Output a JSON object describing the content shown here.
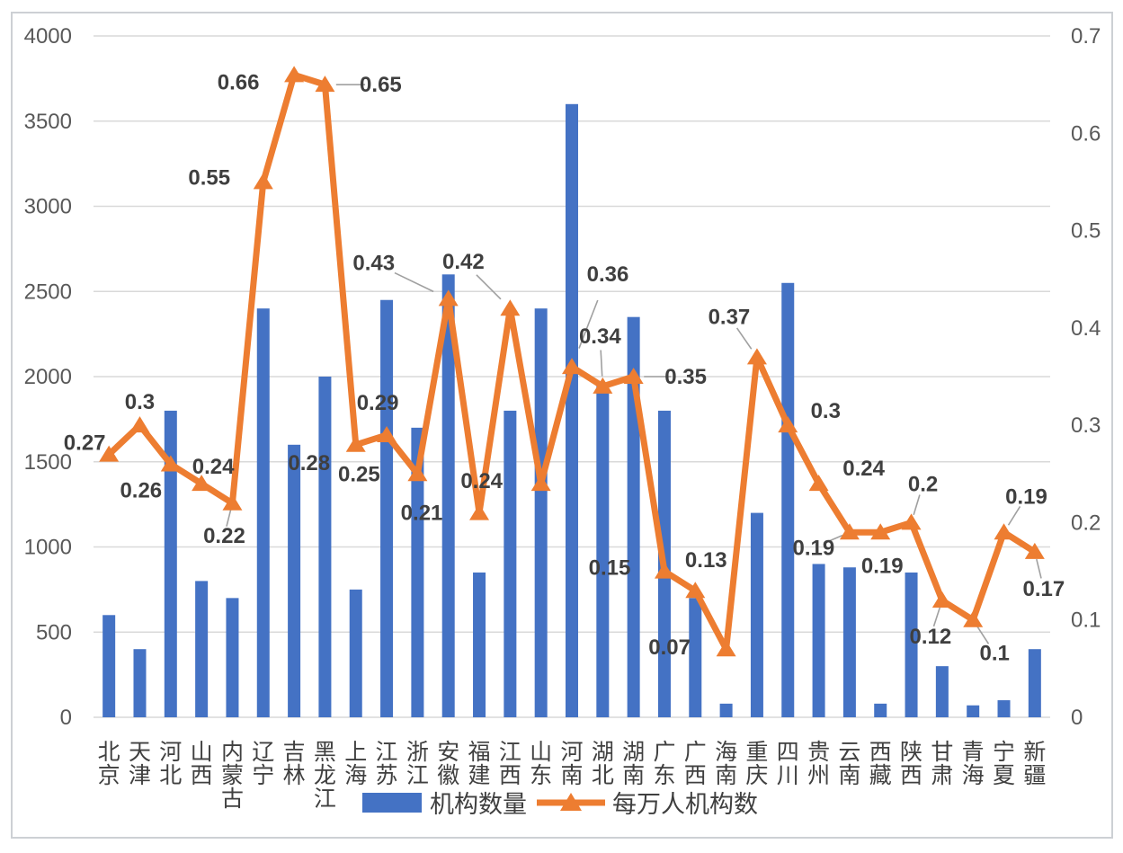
{
  "chart_data": {
    "type": "combo-bar-line",
    "categories": [
      "北京",
      "天津",
      "河北",
      "山西",
      "内蒙古",
      "辽宁",
      "吉林",
      "黑龙江",
      "上海",
      "江苏",
      "浙江",
      "安徽",
      "福建",
      "江西",
      "山东",
      "河南",
      "湖北",
      "湖南",
      "广东",
      "广西",
      "海南",
      "重庆",
      "四川",
      "贵州",
      "云南",
      "西藏",
      "陕西",
      "甘肃",
      "青海",
      "宁夏",
      "新疆"
    ],
    "series": [
      {
        "name": "机构数量",
        "type": "bar",
        "axis": "left",
        "color": "#4472C4",
        "values": [
          600,
          400,
          1800,
          800,
          700,
          2400,
          1600,
          2000,
          750,
          2450,
          1700,
          2600,
          850,
          1800,
          2400,
          3600,
          1950,
          2350,
          1800,
          700,
          80,
          1200,
          2550,
          900,
          880,
          80,
          850,
          300,
          70,
          100,
          400
        ]
      },
      {
        "name": "每万人机构数",
        "type": "line",
        "axis": "right",
        "color": "#ED7D31",
        "marker": "triangle",
        "values": [
          0.27,
          0.3,
          0.26,
          0.24,
          0.22,
          0.55,
          0.66,
          0.65,
          0.28,
          0.29,
          0.25,
          0.43,
          0.21,
          0.42,
          0.24,
          0.36,
          0.34,
          0.35,
          0.15,
          0.13,
          0.07,
          0.37,
          0.3,
          0.24,
          0.19,
          0.19,
          0.2,
          0.12,
          0.1,
          0.19,
          0.17
        ]
      }
    ],
    "data_labels": [
      "0.27",
      "0.3",
      "0.26",
      "0.24",
      "0.22",
      "0.55",
      "0.66",
      "0.65",
      "0.28",
      "0.29",
      "0.25",
      "0.43",
      "0.21",
      "0.42",
      "0.24",
      "0.36",
      "0.34",
      "0.35",
      "0.15",
      "0.13",
      "0.07",
      "0.37",
      "0.3",
      "0.24",
      "0.19",
      "0.19",
      "0.2",
      "0.12",
      "0.1",
      "0.19",
      "0.17"
    ],
    "left_axis": {
      "min": 0,
      "max": 4000,
      "step": 500,
      "ticks": [
        "0",
        "500",
        "1000",
        "1500",
        "2000",
        "2500",
        "3000",
        "3500",
        "4000"
      ]
    },
    "right_axis": {
      "min": 0,
      "max": 0.7,
      "step": 0.1,
      "ticks": [
        "0",
        "0.1",
        "0.2",
        "0.3",
        "0.4",
        "0.5",
        "0.6",
        "0.7"
      ]
    },
    "grid": true,
    "legend_position": "bottom"
  },
  "legend": {
    "bar_label": "机构数量",
    "line_label": "每万人机构数"
  },
  "colors": {
    "bar": "#4472C4",
    "line": "#ED7D31",
    "gridline": "#d9d9d9",
    "axis_text": "#595959",
    "data_label_text": "#3f3f3f",
    "leader_line": "#a0a0a0"
  }
}
